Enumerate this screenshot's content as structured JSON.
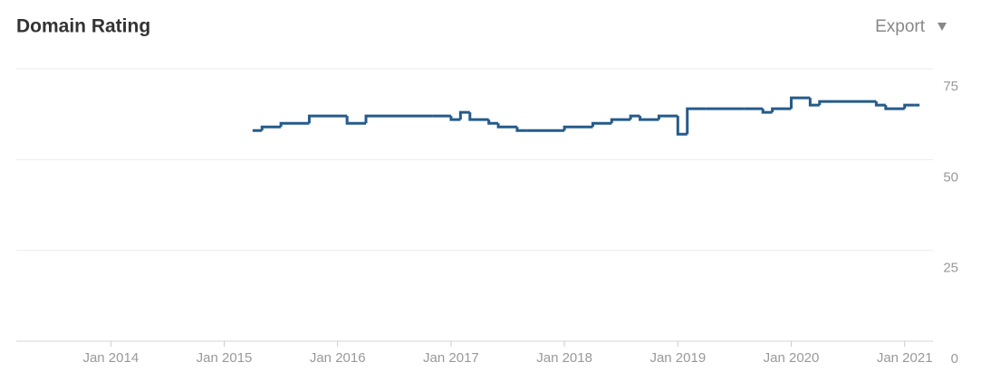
{
  "chart_data": {
    "type": "line",
    "title": "Domain Rating",
    "export_label": "Export",
    "x": [
      "2015-04",
      "2015-05",
      "2015-07",
      "2015-10",
      "2016-02",
      "2016-04",
      "2016-11",
      "2017-01",
      "2017-02",
      "2017-03",
      "2017-05",
      "2017-06",
      "2017-08",
      "2017-09",
      "2018-01",
      "2018-04",
      "2018-06",
      "2018-08",
      "2018-09",
      "2018-11",
      "2019-01",
      "2019-02",
      "2019-04",
      "2019-08",
      "2019-10",
      "2019-11",
      "2020-01",
      "2020-03",
      "2020-04",
      "2020-10",
      "2020-11",
      "2021-01",
      "2021-02"
    ],
    "values": [
      58,
      59,
      60,
      62,
      60,
      62,
      62,
      61,
      63,
      61,
      60,
      59,
      58,
      58,
      59,
      60,
      61,
      62,
      61,
      62,
      57,
      64,
      64,
      64,
      63,
      64,
      67,
      65,
      66,
      65,
      64,
      65,
      65
    ],
    "color": "#255b8a",
    "xlim": [
      "2013-03",
      "2021-04"
    ],
    "xticks": [
      {
        "value": "2014-01",
        "label": "Jan 2014"
      },
      {
        "value": "2015-01",
        "label": "Jan 2015"
      },
      {
        "value": "2016-01",
        "label": "Jan 2016"
      },
      {
        "value": "2017-01",
        "label": "Jan 2017"
      },
      {
        "value": "2018-01",
        "label": "Jan 2018"
      },
      {
        "value": "2019-01",
        "label": "Jan 2019"
      },
      {
        "value": "2020-01",
        "label": "Jan 2020"
      },
      {
        "value": "2021-01",
        "label": "Jan 2021"
      }
    ],
    "ylim": [
      0,
      75
    ],
    "yticks": [
      0,
      25,
      50,
      75
    ],
    "grid": true
  }
}
